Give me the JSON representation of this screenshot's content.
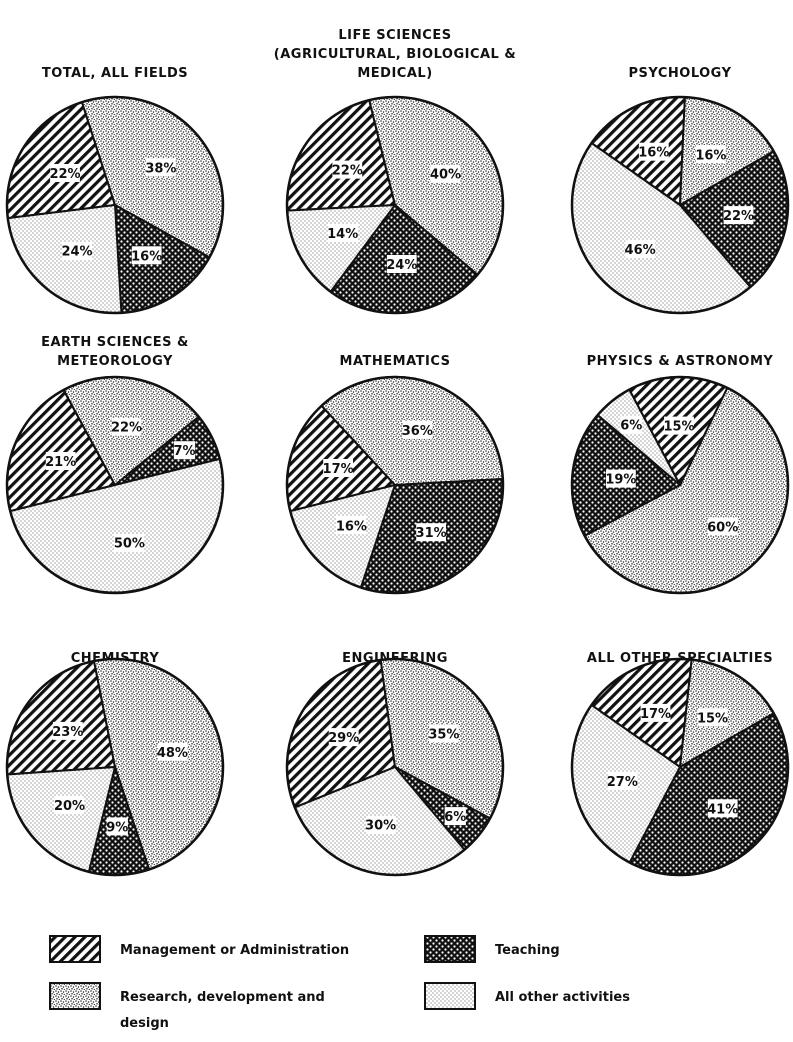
{
  "chart_data": [
    {
      "type": "pie",
      "title_lines": [
        "TOTAL, ALL FIELDS"
      ],
      "slices": [
        {
          "category": "management",
          "value": 22,
          "label": "22%"
        },
        {
          "category": "research",
          "value": 38,
          "label": "38%"
        },
        {
          "category": "teaching",
          "value": 16,
          "label": "16%"
        },
        {
          "category": "other",
          "value": 24,
          "label": "24%"
        }
      ]
    },
    {
      "type": "pie",
      "title_lines": [
        "LIFE SCIENCES",
        "(AGRICULTURAL, BIOLOGICAL &",
        "MEDICAL)"
      ],
      "slices": [
        {
          "category": "management",
          "value": 22,
          "label": "22%"
        },
        {
          "category": "research",
          "value": 40,
          "label": "40%"
        },
        {
          "category": "teaching",
          "value": 24,
          "label": "24%"
        },
        {
          "category": "other",
          "value": 14,
          "label": "14%"
        }
      ]
    },
    {
      "type": "pie",
      "title_lines": [
        "PSYCHOLOGY"
      ],
      "slices": [
        {
          "category": "management",
          "value": 16,
          "label": "16%"
        },
        {
          "category": "research",
          "value": 16,
          "label": "16%"
        },
        {
          "category": "teaching",
          "value": 22,
          "label": "22%"
        },
        {
          "category": "other",
          "value": 46,
          "label": "46%"
        }
      ]
    },
    {
      "type": "pie",
      "title_lines": [
        "EARTH SCIENCES &",
        "METEOROLOGY"
      ],
      "slices": [
        {
          "category": "management",
          "value": 21,
          "label": "21%"
        },
        {
          "category": "research",
          "value": 22,
          "label": "22%"
        },
        {
          "category": "teaching",
          "value": 7,
          "label": "7%"
        },
        {
          "category": "other",
          "value": 50,
          "label": "50%"
        }
      ]
    },
    {
      "type": "pie",
      "title_lines": [
        "MATHEMATICS"
      ],
      "slices": [
        {
          "category": "management",
          "value": 17,
          "label": "17%"
        },
        {
          "category": "research",
          "value": 36,
          "label": "36%"
        },
        {
          "category": "teaching",
          "value": 31,
          "label": "31%"
        },
        {
          "category": "other",
          "value": 16,
          "label": "16%"
        }
      ]
    },
    {
      "type": "pie",
      "title_lines": [
        "PHYSICS & ASTRONOMY"
      ],
      "slices": [
        {
          "category": "management",
          "value": 15,
          "label": "15%"
        },
        {
          "category": "research",
          "value": 60,
          "label": "60%"
        },
        {
          "category": "teaching",
          "value": 19,
          "label": "19%"
        },
        {
          "category": "other",
          "value": 6,
          "label": "6%"
        }
      ]
    },
    {
      "type": "pie",
      "title_lines": [
        "CHEMISTRY"
      ],
      "slices": [
        {
          "category": "management",
          "value": 23,
          "label": "23%"
        },
        {
          "category": "research",
          "value": 48,
          "label": "48%"
        },
        {
          "category": "teaching",
          "value": 9,
          "label": "9%"
        },
        {
          "category": "other",
          "value": 20,
          "label": "20%"
        }
      ]
    },
    {
      "type": "pie",
      "title_lines": [
        "ENGINEERING"
      ],
      "slices": [
        {
          "category": "management",
          "value": 29,
          "label": "29%"
        },
        {
          "category": "research",
          "value": 35,
          "label": "35%"
        },
        {
          "category": "teaching",
          "value": 6,
          "label": "6%"
        },
        {
          "category": "other",
          "value": 30,
          "label": "30%"
        }
      ]
    },
    {
      "type": "pie",
      "title_lines": [
        "ALL OTHER SPECIALTIES"
      ],
      "slices": [
        {
          "category": "management",
          "value": 17,
          "label": "17%"
        },
        {
          "category": "research",
          "value": 15,
          "label": "15%"
        },
        {
          "category": "teaching",
          "value": 41,
          "label": "41%"
        },
        {
          "category": "other",
          "value": 27,
          "label": "27%"
        }
      ]
    }
  ],
  "legend": {
    "items": [
      {
        "category": "management",
        "lines": [
          "Management or Administration"
        ]
      },
      {
        "category": "teaching",
        "lines": [
          "Teaching"
        ]
      },
      {
        "category": "research",
        "lines": [
          "Research, development and",
          "design"
        ]
      },
      {
        "category": "other",
        "lines": [
          "All other activities"
        ]
      }
    ]
  }
}
